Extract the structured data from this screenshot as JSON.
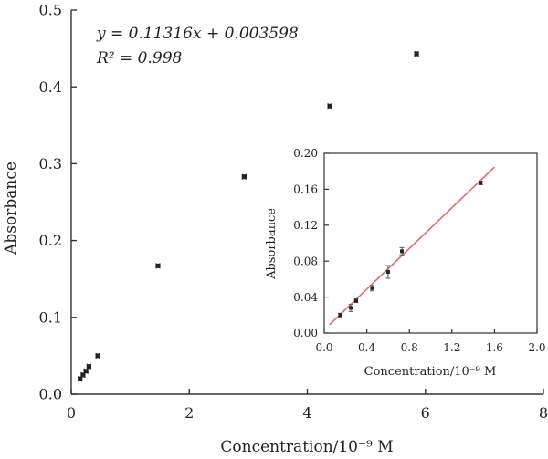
{
  "chart_data": [
    {
      "type": "scatter",
      "title": "",
      "xlabel": "Concentration/10⁻⁹ M",
      "ylabel": "Absorbance",
      "xlim": [
        0,
        8
      ],
      "ylim": [
        0,
        0.5
      ],
      "x_ticks": [
        "0",
        "2",
        "4",
        "6",
        "8"
      ],
      "y_ticks": [
        "0.0",
        "0.1",
        "0.2",
        "0.3",
        "0.4",
        "0.5"
      ],
      "grid": false,
      "annotations": [
        "y = 0.11316x + 0.003598",
        "R² = 0.998"
      ],
      "series": [
        {
          "x": [
            0.15,
            0.2,
            0.25,
            0.3,
            0.45,
            1.47,
            2.93,
            4.38,
            5.85
          ],
          "y": [
            0.02,
            0.025,
            0.03,
            0.036,
            0.05,
            0.167,
            0.283,
            0.375,
            0.443
          ],
          "x_err": [
            0.03,
            0.03,
            0.03,
            0.03,
            0.03,
            0.03,
            0.03,
            0.03,
            0.03
          ]
        }
      ]
    },
    {
      "type": "scatter",
      "title": "",
      "xlabel": "Concentration/10⁻⁹ M",
      "ylabel": "Absorbance",
      "xlim": [
        0,
        2.0
      ],
      "ylim": [
        0,
        0.2
      ],
      "x_ticks": [
        "0.0",
        "0.4",
        "0.8",
        "1.2",
        "1.6",
        "2.0"
      ],
      "y_ticks": [
        "0.00",
        "0.04",
        "0.08",
        "0.12",
        "0.16",
        "0.20"
      ],
      "grid": false,
      "fit_line": {
        "slope": 0.11316,
        "intercept": 0.003598,
        "x_range": [
          0.05,
          1.6
        ],
        "color": "#e36a6a"
      },
      "series": [
        {
          "x": [
            0.15,
            0.25,
            0.3,
            0.45,
            0.6,
            0.73,
            1.47
          ],
          "y": [
            0.02,
            0.028,
            0.036,
            0.05,
            0.068,
            0.091,
            0.167
          ],
          "y_err": [
            0.002,
            0.004,
            0.002,
            0.003,
            0.007,
            0.004,
            0.002
          ]
        }
      ]
    }
  ]
}
